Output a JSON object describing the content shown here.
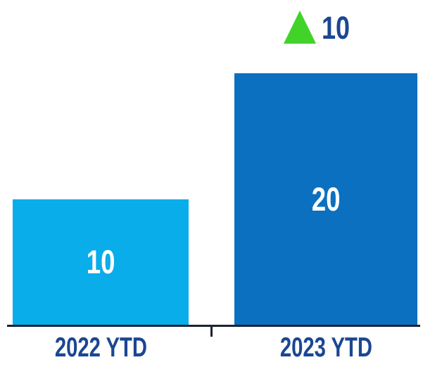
{
  "chart_data": {
    "type": "bar",
    "categories": [
      "2022 YTD",
      "2023 YTD"
    ],
    "values": [
      10,
      20
    ],
    "title": "",
    "xlabel": "",
    "ylabel": "",
    "ylim": [
      0,
      20
    ],
    "grid": false,
    "legend": false,
    "annotation": {
      "delta": "10",
      "direction": "up",
      "attached_to_category": "2023 YTD"
    },
    "colors": {
      "bar_2022": "#09ADEA",
      "bar_2023": "#0B70C0",
      "delta_triangle": "#41D32A",
      "category_label_text": "#1B4693",
      "delta_value_text": "#1B4693",
      "bar_value_text": "#FFFFFF",
      "axis_line": "#1A2433",
      "background": "#FFFFFF"
    }
  }
}
